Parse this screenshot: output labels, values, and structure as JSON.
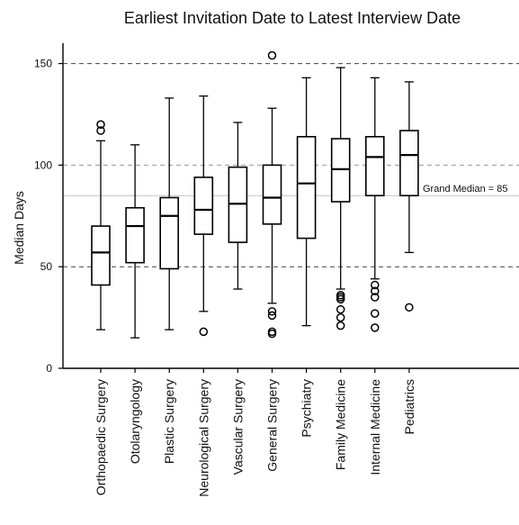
{
  "chart_data": {
    "type": "boxplot",
    "title": "Earliest Invitation Date to Latest Interview Date",
    "xlabel": "",
    "ylabel": "Median Days",
    "ylim": [
      0,
      160
    ],
    "yticks": [
      0,
      50,
      100,
      150
    ],
    "grid": "horizontal-dashed",
    "reference_line": {
      "value": 85,
      "label": "Grand Median = 85"
    },
    "categories": [
      "Orthopaedic Surgery",
      "Otolaryngology",
      "Plastic Surgery",
      "Neurological Surgery",
      "Vascular Surgery",
      "General Surgery",
      "Psychiatry",
      "Family Medicine",
      "Internal Medicine",
      "Pediatrics"
    ],
    "boxes": [
      {
        "min": 19,
        "q1": 41,
        "median": 57,
        "q3": 70,
        "max": 112,
        "outliers": [
          117,
          120
        ]
      },
      {
        "min": 15,
        "q1": 52,
        "median": 70,
        "q3": 79,
        "max": 110,
        "outliers": []
      },
      {
        "min": 19,
        "q1": 49,
        "median": 75,
        "q3": 84,
        "max": 133,
        "outliers": []
      },
      {
        "min": 28,
        "q1": 66,
        "median": 78,
        "q3": 94,
        "max": 134,
        "outliers": [
          18
        ]
      },
      {
        "min": 39,
        "q1": 62,
        "median": 81,
        "q3": 99,
        "max": 121,
        "outliers": []
      },
      {
        "min": 32,
        "q1": 71,
        "median": 84,
        "q3": 100,
        "max": 128,
        "outliers": [
          17,
          18,
          26,
          28,
          154
        ]
      },
      {
        "min": 21,
        "q1": 64,
        "median": 91,
        "q3": 114,
        "max": 143,
        "outliers": []
      },
      {
        "min": 39,
        "q1": 82,
        "median": 98,
        "q3": 113,
        "max": 148,
        "outliers": [
          21,
          25,
          29,
          34,
          35,
          36
        ]
      },
      {
        "min": 44,
        "q1": 85,
        "median": 104,
        "q3": 114,
        "max": 143,
        "outliers": [
          20,
          27,
          35,
          38,
          41
        ]
      },
      {
        "min": 57,
        "q1": 85,
        "median": 105,
        "q3": 117,
        "max": 141,
        "outliers": [
          30
        ]
      }
    ]
  }
}
